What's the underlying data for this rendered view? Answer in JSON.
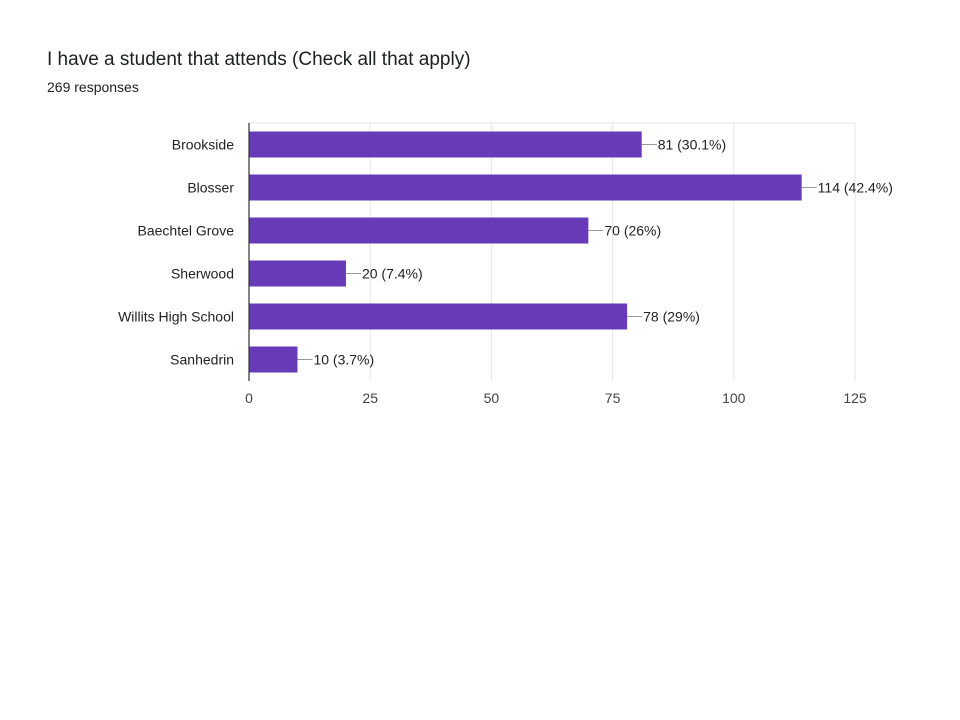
{
  "header": {
    "title": "I have a student that attends (Check all that apply)",
    "subtitle": "269 responses"
  },
  "colors": {
    "bar": "#673ab7",
    "grid": "#e6e6e6",
    "axis": "#333333",
    "leader": "#999999"
  },
  "chart_data": {
    "type": "bar",
    "orientation": "horizontal",
    "categories": [
      "Brookside",
      "Blosser",
      "Baechtel Grove",
      "Sherwood",
      "Willits High School",
      "Sanhedrin"
    ],
    "values": [
      81,
      114,
      70,
      20,
      78,
      10
    ],
    "data_labels": [
      "81 (30.1%)",
      "114 (42.4%)",
      "70 (26%)",
      "20 (7.4%)",
      "78 (29%)",
      "10 (3.7%)"
    ],
    "xlim": [
      0,
      125
    ],
    "xticks": [
      0,
      25,
      50,
      75,
      100,
      125
    ],
    "grid": true,
    "legend": "none"
  }
}
